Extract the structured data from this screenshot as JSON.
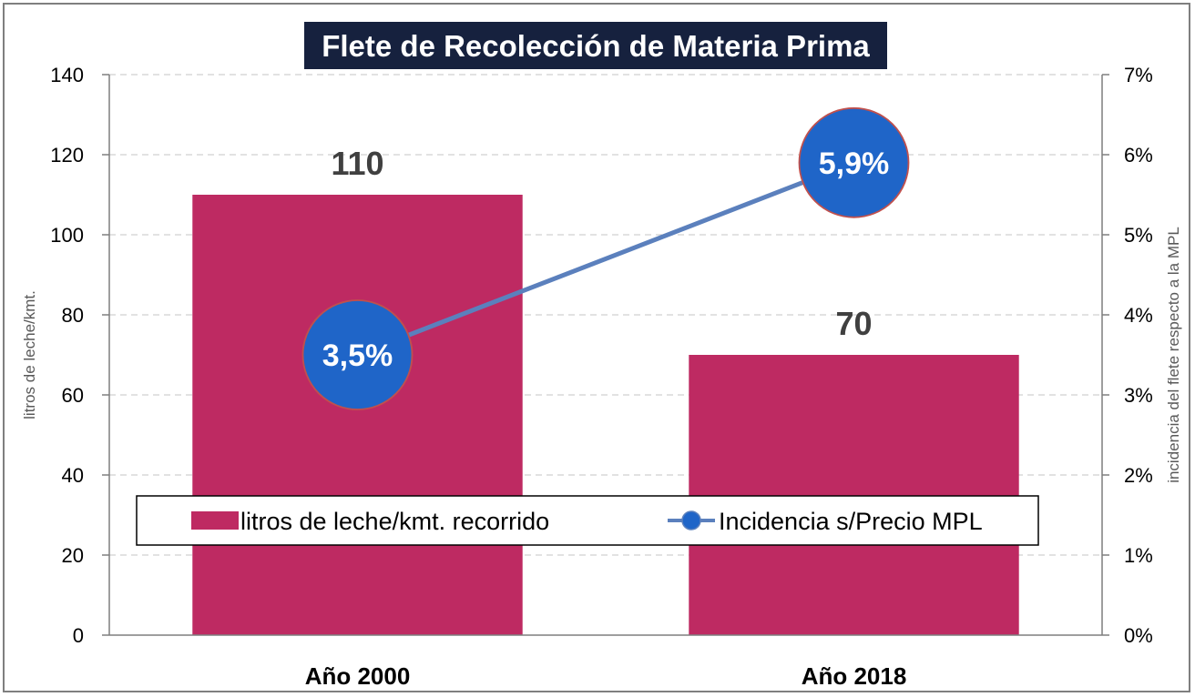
{
  "chart_data": {
    "type": "bar",
    "title": "Flete de Recolección de Materia Prima",
    "categories": [
      "Año 2000",
      "Año 2018"
    ],
    "series": [
      {
        "name": "litros de leche/kmt. recorrido",
        "type": "bar",
        "axis": "left",
        "values": [
          110,
          70
        ],
        "labels": [
          "110",
          "70"
        ],
        "color": "#be2a62"
      },
      {
        "name": "Incidencia s/Precio MPL",
        "type": "line",
        "axis": "right",
        "values": [
          0.035,
          0.059
        ],
        "labels": [
          "3,5%",
          "5,9%"
        ],
        "color": "#1f65c8",
        "line_color": "#5b80bd",
        "marker_edge": "#c0504d"
      }
    ],
    "ylabel": "litros de leche/kmt.",
    "y2label": "incidencia del flete respecto a la MPL",
    "ylim": [
      0,
      140
    ],
    "y2lim": [
      0,
      0.07
    ],
    "yticks": [
      "0",
      "20",
      "40",
      "60",
      "80",
      "100",
      "120",
      "140"
    ],
    "y2ticks": [
      "0%",
      "1%",
      "2%",
      "3%",
      "4%",
      "5%",
      "6%",
      "7%"
    ],
    "grid": true,
    "legend_position": "bottom-inside",
    "title_background": "#16213e"
  }
}
